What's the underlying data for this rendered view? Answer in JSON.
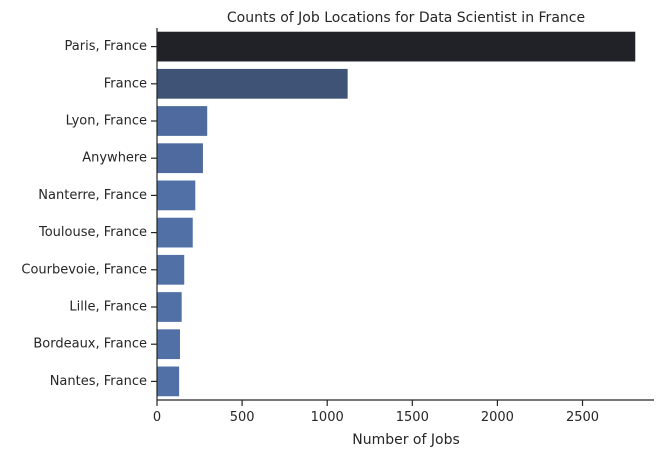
{
  "chart_data": {
    "type": "bar",
    "orientation": "horizontal",
    "title": "Counts of Job Locations for Data Scientist in France",
    "xlabel": "Number of Jobs",
    "ylabel": "",
    "categories": [
      "Paris, France",
      "France",
      "Lyon, France",
      "Anywhere",
      "Nanterre, France",
      "Toulouse, France",
      "Courbevoie, France",
      "Lille, France",
      "Bordeaux, France",
      "Nantes, France"
    ],
    "values": [
      2810,
      1120,
      295,
      270,
      225,
      210,
      160,
      145,
      135,
      130
    ],
    "xlim": [
      0,
      2920
    ],
    "xticks": [
      0,
      500,
      1000,
      1500,
      2000,
      2500
    ],
    "grid": false,
    "palette": "dark-to-blue gradient",
    "bar_colors": [
      "#202228",
      "#3e5375",
      "#4f6a9e",
      "#4f6a9e",
      "#5170a6",
      "#5170a6",
      "#5170a6",
      "#5170a6",
      "#5170a6",
      "#5170a6"
    ]
  }
}
